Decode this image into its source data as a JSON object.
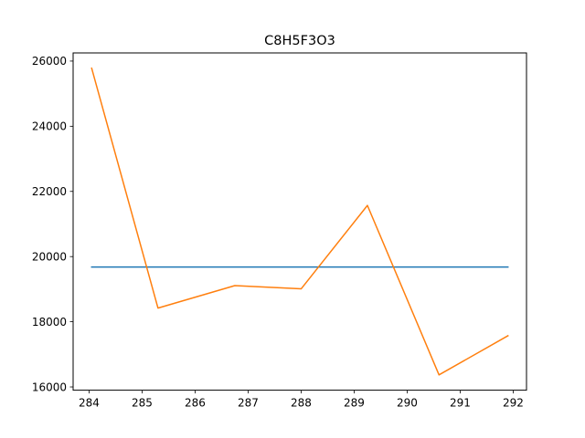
{
  "chart_data": {
    "type": "line",
    "title": "C8H5F3O3",
    "xlabel": "",
    "ylabel": "",
    "xlim": [
      283.7,
      292.25
    ],
    "ylim": [
      15900,
      26250
    ],
    "x_ticks": [
      284,
      285,
      286,
      287,
      288,
      289,
      290,
      291,
      292
    ],
    "y_ticks": [
      16000,
      18000,
      20000,
      22000,
      24000,
      26000
    ],
    "grid": false,
    "legend": "none",
    "series": [
      {
        "color": "#1f77b4",
        "x": [
          284.05,
          291.9
        ],
        "y": [
          19680,
          19680
        ]
      },
      {
        "color": "#ff7f0e",
        "x": [
          284.05,
          285.3,
          286.75,
          288.0,
          289.25,
          290.6,
          291.9
        ],
        "y": [
          25780,
          18420,
          19110,
          19010,
          21570,
          16370,
          17570
        ]
      }
    ]
  }
}
